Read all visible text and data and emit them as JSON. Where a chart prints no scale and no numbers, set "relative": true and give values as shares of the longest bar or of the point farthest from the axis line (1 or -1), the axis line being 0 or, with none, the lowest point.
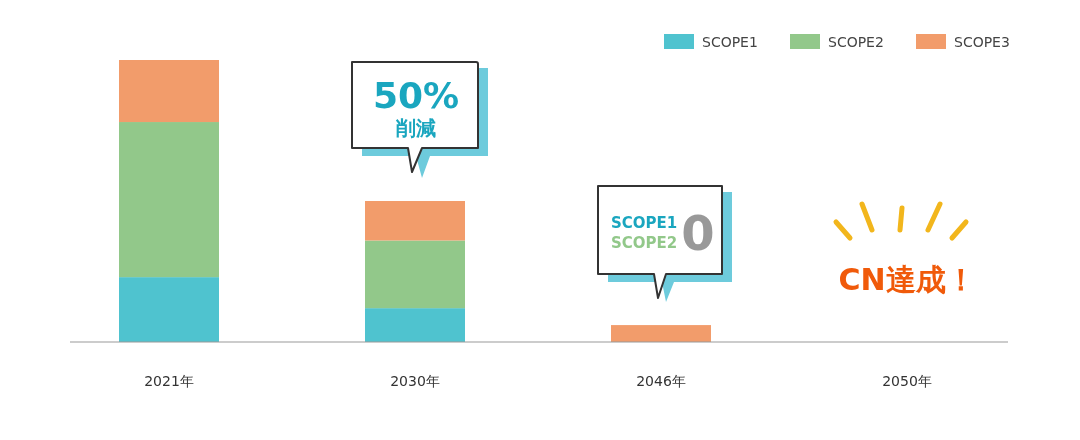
{
  "chart_data": {
    "type": "bar",
    "stacked": true,
    "relative": true,
    "categories": [
      "2021年",
      "2030年",
      "2046年",
      "2050年"
    ],
    "series": [
      {
        "name": "SCOPE1",
        "color": "#4fc3cf",
        "values": [
          0.23,
          0.12,
          0,
          0
        ]
      },
      {
        "name": "SCOPE2",
        "color": "#92c88a",
        "values": [
          0.55,
          0.24,
          0,
          0
        ]
      },
      {
        "name": "SCOPE3",
        "color": "#f29c6b",
        "values": [
          0.22,
          0.14,
          0.06,
          0
        ]
      }
    ],
    "legend": "top right",
    "annotations": [
      "50%",
      "削減",
      "SCOPE1",
      "SCOPE2",
      "0",
      "CN達成！"
    ]
  }
}
